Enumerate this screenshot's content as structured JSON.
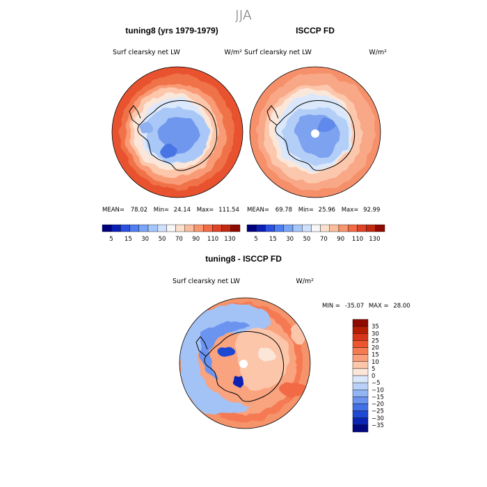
{
  "figure_title": "JJA",
  "chart_data": [
    {
      "type": "heatmap",
      "projection": "south polar stereographic",
      "title": "tuning8 (yrs 1979-1979)",
      "variable": "Surf clearsky net LW",
      "units": "W/m²",
      "stats": {
        "mean_label": "MEAN=",
        "mean": "78.02",
        "min_label": "Min=",
        "min": "24.14",
        "max_label": "Max=",
        "max": "111.54"
      },
      "contour_levels": [
        5,
        10,
        15,
        20,
        30,
        40,
        50,
        60,
        70,
        80,
        90,
        100,
        110,
        120,
        130
      ],
      "colorbar_tick_labels": [
        "5",
        "15",
        "30",
        "50",
        "70",
        "90",
        "110",
        "130"
      ],
      "colorbar_colors": [
        "#00007f",
        "#0a1fb5",
        "#2b50e0",
        "#4f7ef0",
        "#7aa4f5",
        "#a5c6fa",
        "#cfe0fc",
        "#f7f7f7",
        "#fde0cc",
        "#fbbd9c",
        "#f8966e",
        "#f26b45",
        "#e04427",
        "#c22a10",
        "#8e0a00"
      ]
    },
    {
      "type": "heatmap",
      "projection": "south polar stereographic",
      "title": "ISCCP FD",
      "variable": "Surf clearsky net LW",
      "units": "W/m²",
      "stats": {
        "mean_label": "MEAN=",
        "mean": "69.78",
        "min_label": "Min=",
        "min": "25.96",
        "max_label": "Max=",
        "max": "92.99"
      },
      "contour_levels": [
        5,
        10,
        15,
        20,
        30,
        40,
        50,
        60,
        70,
        80,
        90,
        100,
        110,
        120,
        130
      ],
      "colorbar_tick_labels": [
        "5",
        "15",
        "30",
        "50",
        "70",
        "90",
        "110",
        "130"
      ],
      "colorbar_colors": [
        "#00007f",
        "#0a1fb5",
        "#2b50e0",
        "#4f7ef0",
        "#7aa4f5",
        "#a5c6fa",
        "#cfe0fc",
        "#f7f7f7",
        "#fde0cc",
        "#fbbd9c",
        "#f8966e",
        "#f26b45",
        "#e04427",
        "#c22a10",
        "#8e0a00"
      ]
    },
    {
      "type": "heatmap",
      "projection": "south polar stereographic",
      "title": "tuning8 - ISCCP FD",
      "variable": "Surf clearsky net LW",
      "units": "W/m²",
      "stats": {
        "min_label": "MIN =",
        "min": "-35.07",
        "max_label": "MAX =",
        "max": "28.00"
      },
      "contour_levels": [
        -35,
        -30,
        -25,
        -20,
        -15,
        -10,
        -5,
        0,
        5,
        10,
        15,
        20,
        25,
        30,
        35
      ],
      "colorbar_tick_labels": [
        "35",
        "30",
        "25",
        "20",
        "15",
        "10",
        "5",
        "0",
        "−5",
        "−10",
        "−15",
        "−20",
        "−25",
        "−30",
        "−35"
      ],
      "colorbar_colors": [
        "#8e0a00",
        "#b51d05",
        "#d8361b",
        "#ec5530",
        "#f57a52",
        "#f99f7c",
        "#fcc6ab",
        "#fbe6d8",
        "#dbe8fb",
        "#b9d1f8",
        "#92b5f4",
        "#6b94ef",
        "#4270e6",
        "#1f48d3",
        "#0c24b3",
        "#02087f"
      ]
    }
  ]
}
